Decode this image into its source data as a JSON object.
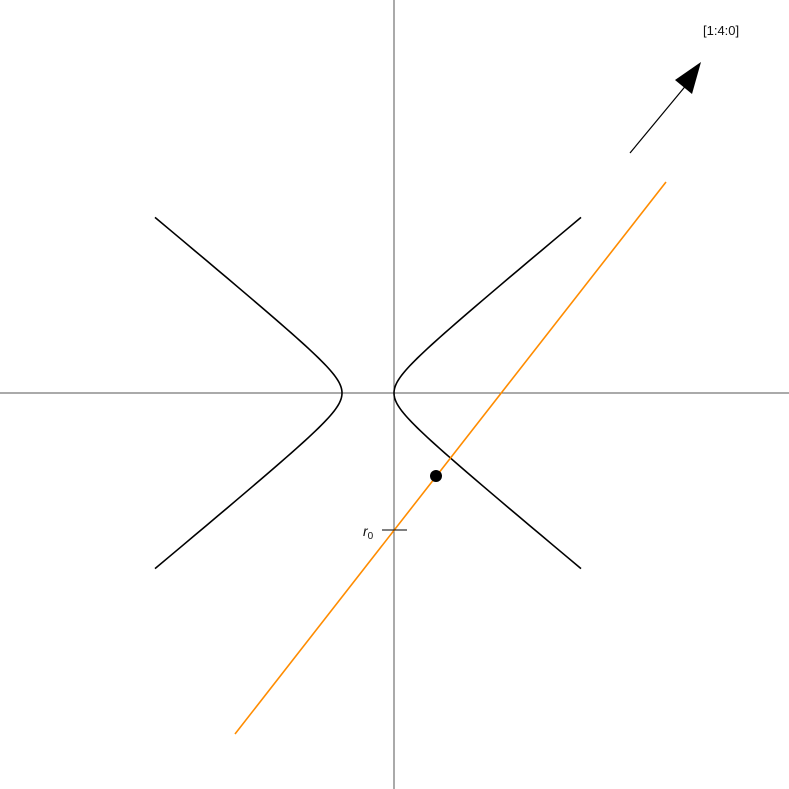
{
  "direction_label": "[1:4:0]",
  "marker_label": {
    "symbol": "r",
    "subscript": "0"
  },
  "colors": {
    "axes": "#555555",
    "hyperbola": "#000000",
    "line": "#ff8c00",
    "arrow": "#000000",
    "point": "#000000"
  }
}
